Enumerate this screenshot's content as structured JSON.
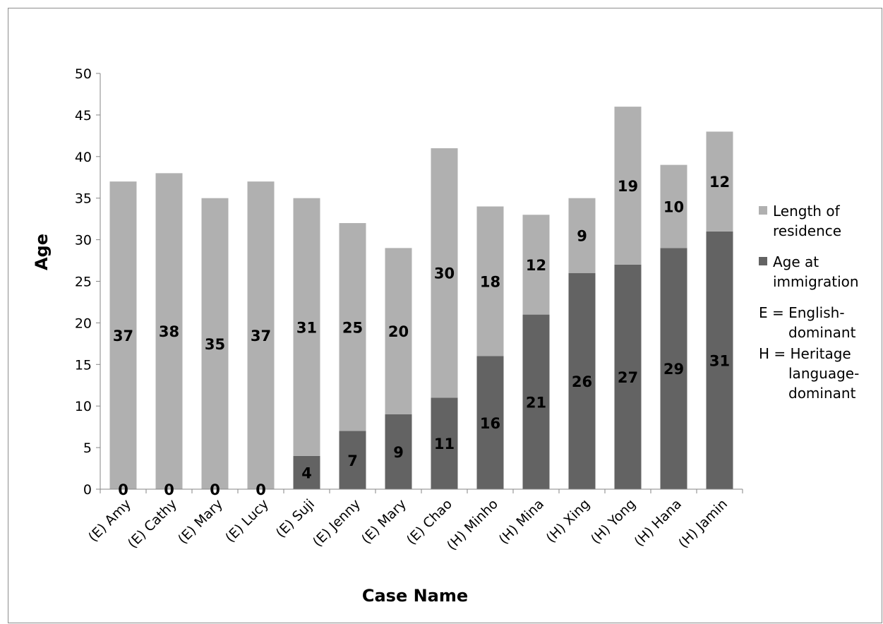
{
  "chart_data": {
    "type": "bar",
    "stacked": true,
    "xlabel": "Case Name",
    "ylabel": "Age",
    "ylim": [
      0,
      50
    ],
    "yticks": [
      0,
      5,
      10,
      15,
      20,
      25,
      30,
      35,
      40,
      45,
      50
    ],
    "grid": false,
    "legend_position": "right",
    "categories": [
      "(E) Amy",
      "(E) Cathy",
      "(E) Mary",
      "(E) Lucy",
      "(E) Suji",
      "(E) Jenny",
      "(E) Mary",
      "(E) Chao",
      "(H) Minho",
      "(H) Mina",
      "(H) Xing",
      "(H) Yong",
      "(H) Hana",
      "(H) Jamin"
    ],
    "series": [
      {
        "name": "Age at immigration",
        "color": "#636363",
        "values": [
          0,
          0,
          0,
          0,
          4,
          7,
          9,
          11,
          16,
          21,
          26,
          27,
          29,
          31
        ]
      },
      {
        "name": "Length of residence",
        "color": "#b0b0b0",
        "values": [
          37,
          38,
          35,
          37,
          31,
          25,
          20,
          30,
          18,
          12,
          9,
          19,
          10,
          12
        ]
      }
    ],
    "legend": {
      "entries": [
        {
          "label_lines": [
            "Length of",
            "residence"
          ],
          "color": "#b0b0b0"
        },
        {
          "label_lines": [
            "Age at",
            "immigration"
          ],
          "color": "#636363"
        }
      ],
      "notes": [
        [
          "E = English-",
          "dominant"
        ],
        [
          "H = Heritage",
          "language-",
          "dominant"
        ]
      ]
    }
  }
}
